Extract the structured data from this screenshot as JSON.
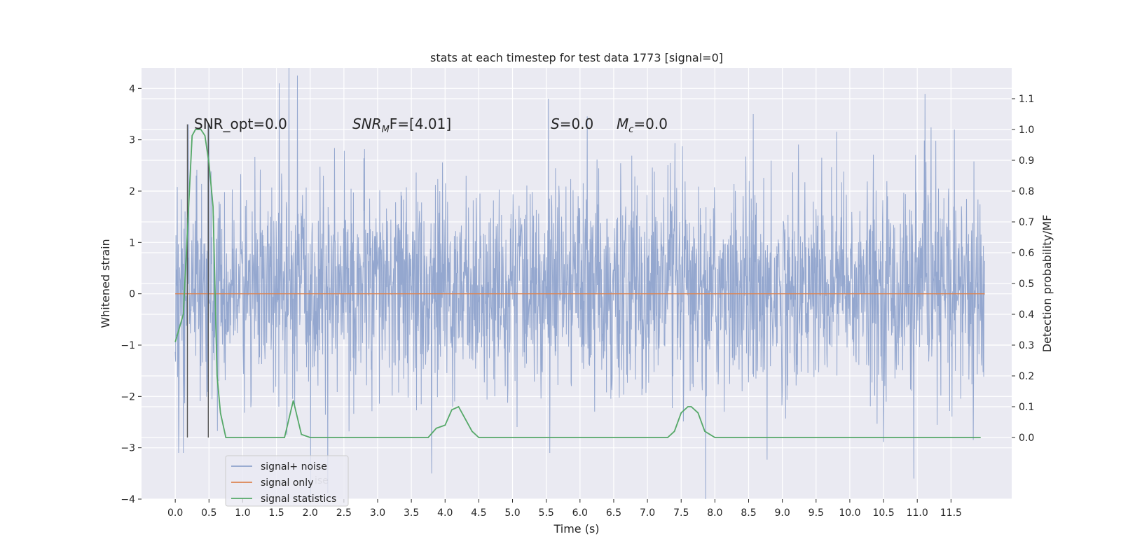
{
  "chart_data": {
    "type": "line",
    "title": "stats at each timestep for test data 1773 [signal=0]",
    "xlabel": "Time (s)",
    "ylabel_left": "Whitened strain",
    "ylabel_right": "Detection probability/MF",
    "xlim": [
      -0.5,
      12.4
    ],
    "ylim_left": [
      -4.0,
      4.4
    ],
    "ylim_right": [
      -0.2,
      1.2
    ],
    "x_ticks": [
      0.0,
      0.5,
      1.0,
      1.5,
      2.0,
      2.5,
      3.0,
      3.5,
      4.0,
      4.5,
      5.0,
      5.5,
      6.0,
      6.5,
      7.0,
      7.5,
      8.0,
      8.5,
      9.0,
      9.5,
      10.0,
      10.5,
      11.0,
      11.5
    ],
    "x_tick_labels": [
      "0.0",
      "0.5",
      "1.0",
      "1.5",
      "2.0",
      "2.5",
      "3.0",
      "3.5",
      "4.0",
      "4.5",
      "5.0",
      "5.5",
      "6.0",
      "6.5",
      "7.0",
      "7.5",
      "8.0",
      "8.5",
      "9.0",
      "9.5",
      "10.0",
      "10.5",
      "11.0",
      "11.5"
    ],
    "y_ticks_left": [
      4,
      3,
      2,
      1,
      0,
      -1,
      -2,
      -3,
      -4
    ],
    "y_tick_labels_left": [
      "4",
      "3",
      "2",
      "1",
      "0",
      "−1",
      "−2",
      "−3",
      "−4"
    ],
    "y_ticks_right": [
      1.1,
      1.0,
      0.9,
      0.8,
      0.7,
      0.6,
      0.5,
      0.4,
      0.3,
      0.2,
      0.1,
      0.0
    ],
    "y_tick_labels_right": [
      "1.1",
      "1.0",
      "0.9",
      "0.8",
      "0.7",
      "0.6",
      "0.5",
      "0.4",
      "0.3",
      "0.2",
      "0.1",
      "0.0"
    ],
    "grid": true,
    "legend_position": "lower-left",
    "legend": [
      {
        "label": "signal+ noise",
        "color": "#8fa3cc"
      },
      {
        "label": "signal only",
        "color": "#dd8452"
      },
      {
        "label": "signal statistics",
        "color": "#55a868"
      }
    ],
    "legend_ghost_text": "ise",
    "annotations": {
      "snr_opt": "SNR_opt=0.0",
      "snr_mf_sym": "SNR",
      "snr_mf_sub": "M",
      "snr_mf_rest": "F=[4.01]",
      "s_sym": "S",
      "s_rest": "=0.0",
      "mc_sym": "M",
      "mc_sub": "c",
      "mc_rest": "=0.0"
    },
    "noise": {
      "t_start": 0.0,
      "t_end": 12.0,
      "typical_band": [
        -1.5,
        1.7
      ],
      "peaks_max": [
        [
          1.54,
          4.1
        ],
        [
          5.53,
          3.8
        ],
        [
          8.57,
          3.5
        ],
        [
          11.55,
          3.2
        ],
        [
          0.2,
          3.3
        ],
        [
          0.5,
          3.3
        ]
      ],
      "peaks_min": [
        [
          3.8,
          -3.5
        ],
        [
          10.95,
          -3.6
        ],
        [
          0.05,
          -3.1
        ],
        [
          0.12,
          -3.1
        ],
        [
          5.55,
          -3.1
        ]
      ]
    },
    "signal_only": {
      "x": [
        0.0,
        12.0
      ],
      "y": [
        0.0,
        0.0
      ]
    },
    "signal_statistics": {
      "x": [
        0.0,
        0.12,
        0.25,
        0.3,
        0.38,
        0.44,
        0.5,
        0.56,
        0.62,
        0.67,
        0.75,
        1.0,
        1.5,
        1.62,
        1.75,
        1.87,
        2.0,
        2.5,
        2.75,
        3.0,
        3.5,
        3.75,
        3.87,
        4.0,
        4.1,
        4.2,
        4.3,
        4.4,
        4.5,
        5.0,
        6.0,
        7.0,
        7.3,
        7.4,
        7.5,
        7.6,
        7.65,
        7.75,
        7.85,
        8.0,
        9.0,
        10.0,
        11.0,
        11.5,
        11.94
      ],
      "y": [
        0.31,
        0.4,
        0.98,
        1.0,
        1.0,
        0.98,
        0.89,
        0.75,
        0.2,
        0.08,
        0.0,
        0.0,
        0.0,
        0.0,
        0.12,
        0.01,
        0.0,
        0.0,
        0.0,
        0.0,
        0.0,
        0.0,
        0.03,
        0.04,
        0.09,
        0.1,
        0.06,
        0.02,
        0.0,
        0.0,
        0.0,
        0.0,
        0.0,
        0.02,
        0.08,
        0.1,
        0.1,
        0.08,
        0.02,
        0.0,
        0.0,
        0.0,
        0.0,
        0.0,
        0.0
      ]
    },
    "marker_lines": [
      {
        "x": 0.18,
        "y_from": -2.8,
        "y_to": 3.3
      },
      {
        "x": 0.49,
        "y_from": -2.8,
        "y_to": 3.3
      }
    ]
  }
}
